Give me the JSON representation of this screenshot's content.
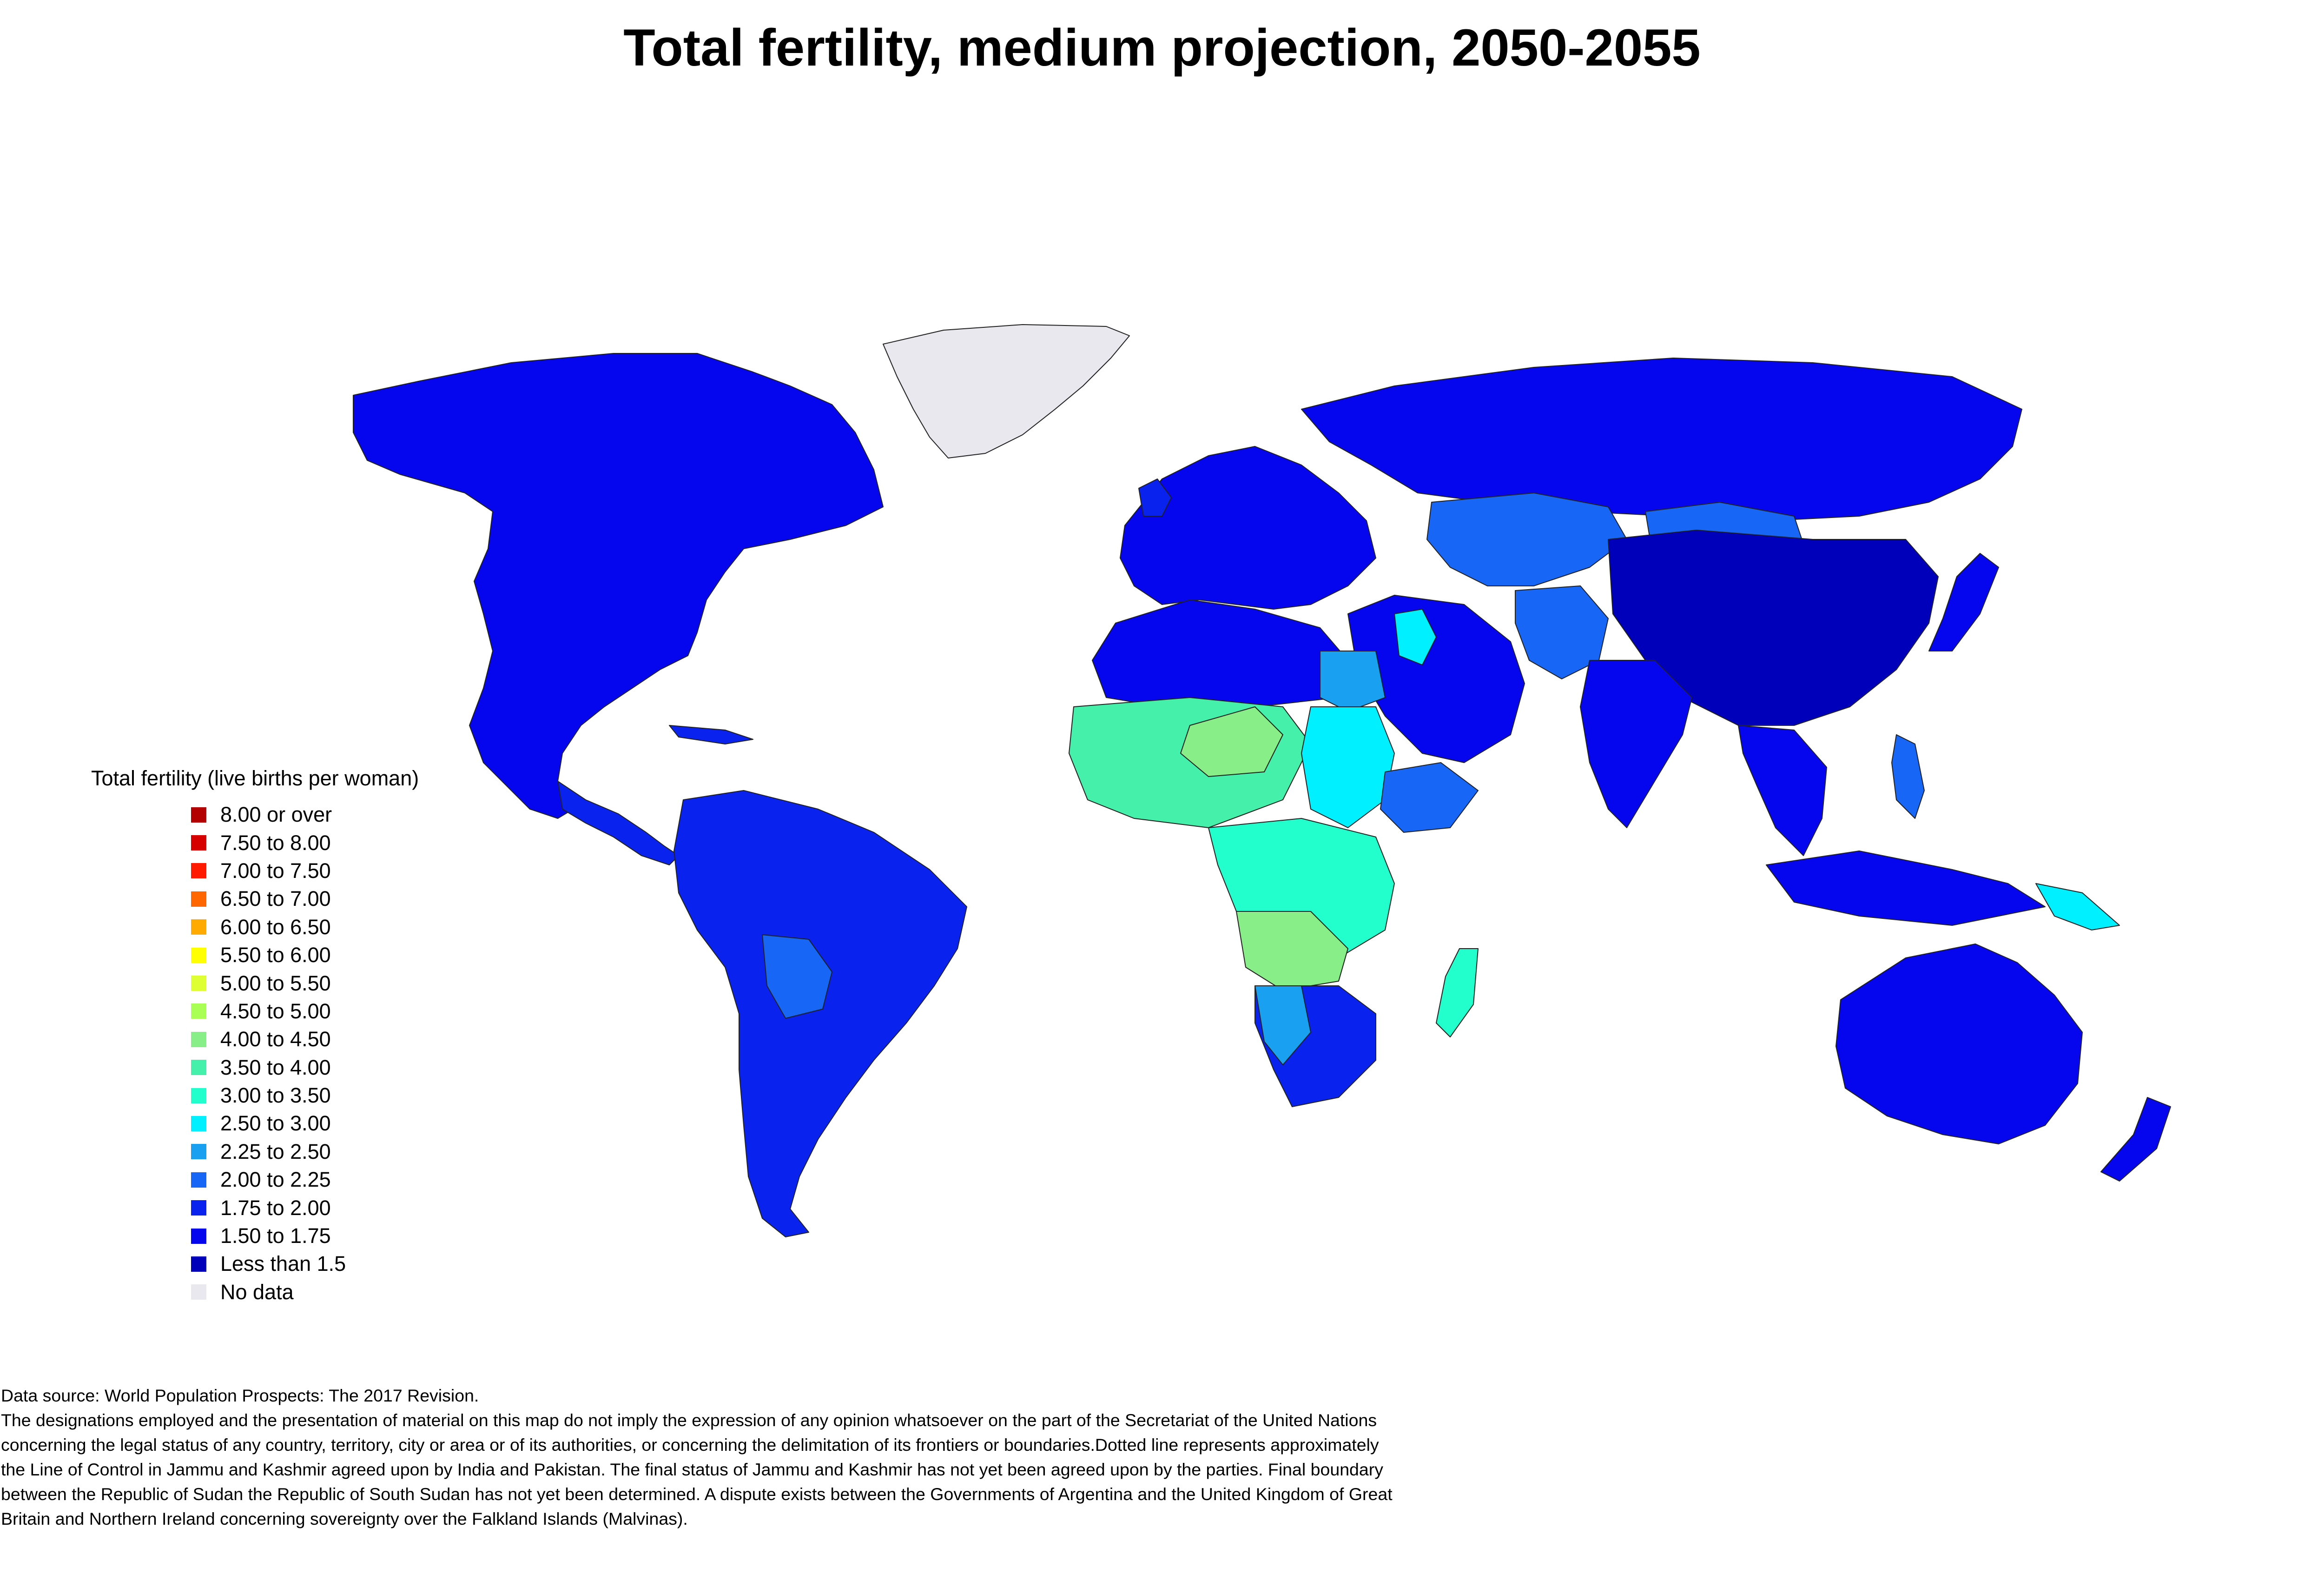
{
  "title": "Total fertility, medium projection, 2050-2055",
  "legend": {
    "title": "Total fertility (live births per woman)",
    "items": [
      {
        "label": "8.00 or over",
        "color": "#b30000"
      },
      {
        "label": "7.50 to 8.00",
        "color": "#d60000"
      },
      {
        "label": "7.00 to 7.50",
        "color": "#ff1a00"
      },
      {
        "label": "6.50 to 7.00",
        "color": "#ff6600"
      },
      {
        "label": "6.00 to 6.50",
        "color": "#ffaa00"
      },
      {
        "label": "5.50 to 6.00",
        "color": "#ffff00"
      },
      {
        "label": "5.00 to 5.50",
        "color": "#ddff33"
      },
      {
        "label": "4.50 to 5.00",
        "color": "#aaff55"
      },
      {
        "label": "4.00 to 4.50",
        "color": "#88ee88"
      },
      {
        "label": "3.50 to 4.00",
        "color": "#44f0aa"
      },
      {
        "label": "3.00 to 3.50",
        "color": "#22ffcc"
      },
      {
        "label": "2.50 to 3.00",
        "color": "#00f0ff"
      },
      {
        "label": "2.25 to 2.50",
        "color": "#1aa0f0"
      },
      {
        "label": "2.00 to 2.25",
        "color": "#1766f5"
      },
      {
        "label": "1.75 to 2.00",
        "color": "#0a22ee"
      },
      {
        "label": "1.50 to 1.75",
        "color": "#0606ee"
      },
      {
        "label": "Less than 1.5",
        "color": "#0000bb"
      },
      {
        "label": "No data",
        "color": "#e8e8ee"
      }
    ]
  },
  "notes": [
    "Data source: World Population Prospects: The 2017 Revision.",
    "The designations employed and the presentation of material on this map do not imply the expression of any opinion whatsoever on the part of the Secretariat of the United Nations",
    "concerning the legal status of any country, territory, city or area or of its authorities, or concerning the delimitation of its frontiers or boundaries.Dotted line represents approximately",
    "the Line of Control in Jammu and Kashmir agreed upon by India and Pakistan. The final status of Jammu and Kashmir has not yet been agreed upon by the parties. Final boundary",
    "between the Republic of Sudan the Republic of South Sudan has not yet been determined. A dispute exists between the Governments of Argentina and the United Kingdom of Great",
    "Britain and Northern Ireland concerning sovereignty over the Falkland Islands (Malvinas)."
  ]
}
